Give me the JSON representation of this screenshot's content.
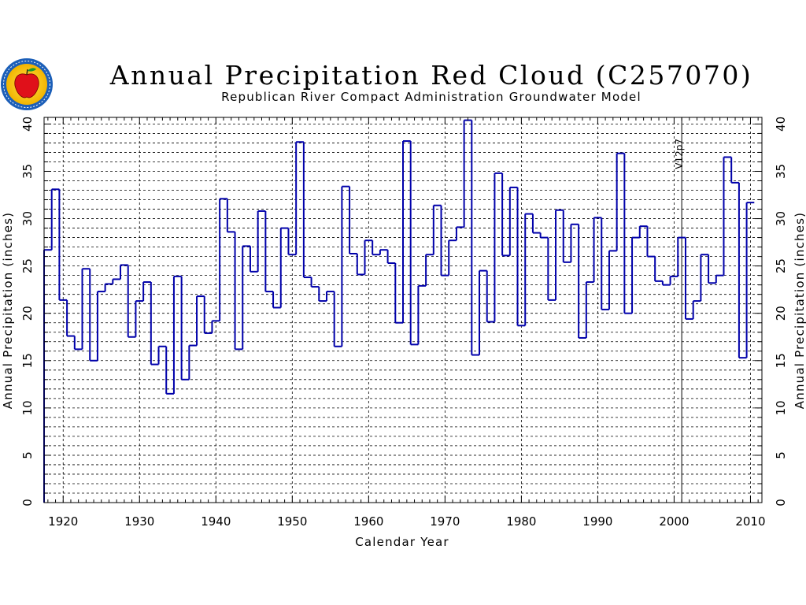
{
  "chart_data": {
    "type": "line",
    "step": true,
    "title": "Annual Precipitation Red Cloud (C257070)",
    "subtitle": "Republican River Compact Administration Groundwater Model",
    "xlabel": "Calendar Year",
    "ylabel": "Annual Precipitation (inches)",
    "ylabel_right": "Annual Precipitation (inches)",
    "xlim": [
      1917.5,
      2011.5
    ],
    "ylim": [
      0,
      40.7
    ],
    "xticks": [
      1920,
      1930,
      1940,
      1950,
      1960,
      1970,
      1980,
      1990,
      2000,
      2010
    ],
    "yticks": [
      0,
      5,
      10,
      15,
      20,
      25,
      30,
      35,
      40
    ],
    "grid": true,
    "annotation": {
      "text": "V12p7",
      "x": 2001
    },
    "line_color": "#0000aa",
    "series": [
      {
        "x": [
          1918,
          1919,
          1920,
          1921,
          1922,
          1923,
          1924,
          1925,
          1926,
          1927,
          1928,
          1929,
          1930,
          1931,
          1932,
          1933,
          1934,
          1935,
          1936,
          1937,
          1938,
          1939,
          1940,
          1941,
          1942,
          1943,
          1944,
          1945,
          1946,
          1947,
          1948,
          1949,
          1950,
          1951,
          1952,
          1953,
          1954,
          1955,
          1956,
          1957,
          1958,
          1959,
          1960,
          1961,
          1962,
          1963,
          1964,
          1965,
          1966,
          1967,
          1968,
          1969,
          1970,
          1971,
          1972,
          1973,
          1974,
          1975,
          1976,
          1977,
          1978,
          1979,
          1980,
          1981,
          1982,
          1983,
          1984,
          1985,
          1986,
          1987,
          1988,
          1989,
          1990,
          1991,
          1992,
          1993,
          1994,
          1995,
          1996,
          1997,
          1998,
          1999,
          2000,
          2001,
          2002,
          2003,
          2004,
          2005,
          2006,
          2007,
          2008,
          2009,
          2010
        ],
        "values": [
          26.7,
          33.1,
          21.4,
          17.6,
          16.2,
          24.7,
          15.0,
          22.3,
          23.1,
          23.6,
          25.1,
          17.5,
          21.3,
          23.3,
          14.6,
          16.5,
          11.5,
          23.9,
          13.0,
          16.6,
          21.8,
          17.9,
          19.2,
          32.1,
          28.6,
          16.2,
          27.1,
          24.4,
          30.8,
          22.3,
          20.6,
          29.0,
          26.2,
          38.1,
          23.8,
          22.8,
          21.3,
          22.3,
          16.5,
          33.4,
          26.3,
          24.1,
          27.7,
          26.2,
          26.7,
          25.3,
          19.0,
          38.2,
          16.7,
          22.9,
          26.2,
          31.4,
          24.0,
          27.7,
          29.1,
          40.4,
          15.6,
          24.5,
          19.1,
          34.8,
          26.1,
          33.3,
          18.7,
          30.5,
          28.5,
          28.0,
          21.4,
          30.9,
          25.4,
          29.4,
          17.4,
          23.3,
          30.1,
          20.4,
          26.6,
          36.9,
          20.0,
          28.0,
          29.2,
          26.0,
          23.4,
          23.0,
          23.9,
          28.0,
          19.4,
          21.3,
          26.2,
          23.2,
          24.0,
          36.5,
          33.8,
          15.3,
          31.7
        ]
      }
    ]
  }
}
